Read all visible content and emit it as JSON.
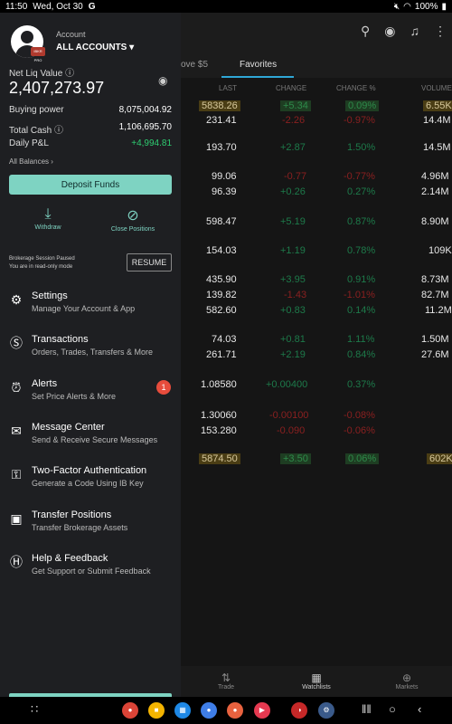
{
  "status_bar": {
    "time": "11:50",
    "date": "Wed, Oct 30",
    "g_logo": "G",
    "battery": "100%"
  },
  "background": {
    "tabs": [
      "ove $5",
      "Favorites"
    ],
    "columns": [
      "LAST",
      "CHANGE",
      "CHANGE %",
      "VOLUME"
    ],
    "rows": [
      {
        "last": "5838.26",
        "change": "+5.34",
        "change_pct": "0.09%",
        "volume": "6.55K",
        "dir": "hl"
      },
      {
        "last": "231.41",
        "change": "-2.26",
        "change_pct": "-0.97%",
        "volume": "14.4M",
        "dir": "neg"
      },
      {
        "last": "193.70",
        "change": "+2.87",
        "change_pct": "1.50%",
        "volume": "14.5M",
        "dir": "pos"
      },
      {
        "last": "99.06",
        "change": "-0.77",
        "change_pct": "-0.77%",
        "volume": "4.96M",
        "dir": "neg"
      },
      {
        "last": "96.39",
        "change": "+0.26",
        "change_pct": "0.27%",
        "volume": "2.14M",
        "dir": "pos"
      },
      {
        "last": "598.47",
        "change": "+5.19",
        "change_pct": "0.87%",
        "volume": "8.90M",
        "dir": "pos"
      },
      {
        "last": "154.03",
        "change": "+1.19",
        "change_pct": "0.78%",
        "volume": "109K",
        "dir": "pos"
      },
      {
        "last": "435.90",
        "change": "+3.95",
        "change_pct": "0.91%",
        "volume": "8.73M",
        "dir": "pos"
      },
      {
        "last": "139.82",
        "change": "-1.43",
        "change_pct": "-1.01%",
        "volume": "82.7M",
        "dir": "neg"
      },
      {
        "last": "582.60",
        "change": "+0.83",
        "change_pct": "0.14%",
        "volume": "11.2M",
        "dir": "pos"
      },
      {
        "last": "74.03",
        "change": "+0.81",
        "change_pct": "1.11%",
        "volume": "1.50M",
        "dir": "pos"
      },
      {
        "last": "261.71",
        "change": "+2.19",
        "change_pct": "0.84%",
        "volume": "27.6M",
        "dir": "pos"
      },
      {
        "last": "1.08580",
        "change": "+0.00400",
        "change_pct": "0.37%",
        "volume": "",
        "dir": "pos"
      },
      {
        "last": "1.30060",
        "change": "-0.00100",
        "change_pct": "-0.08%",
        "volume": "",
        "dir": "neg"
      },
      {
        "last": "153.280",
        "change": "-0.090",
        "change_pct": "-0.06%",
        "volume": "",
        "dir": "neg"
      },
      {
        "last": "5874.50",
        "change": "+3.50",
        "change_pct": "0.06%",
        "volume": "602K",
        "dir": "hlg"
      }
    ],
    "bottom_nav": [
      "Trade",
      "Watchlists",
      "Markets"
    ]
  },
  "drawer": {
    "account_label": "Account",
    "account_value": "ALL ACCOUNTS ▾",
    "avatar_badge": "IBKR PRO",
    "net_liq_label": "Net Liq Value ⓘ",
    "net_liq_value": "2,407,273.97",
    "buying_power_label": "Buying power",
    "buying_power_value": "8,075,004.92",
    "total_cash_label": "Total Cash ⓘ",
    "total_cash_value": "1,106,695.70",
    "daily_pl_label": "Daily P&L",
    "daily_pl_value": "+4,994.81",
    "all_balances": "All Balances ›",
    "deposit_label": "Deposit Funds",
    "withdraw_label": "Withdraw",
    "close_positions_label": "Close Positions",
    "session_line1": "Brokerage Session Paused",
    "session_line2": "You are in read-only mode",
    "resume_label": "RESUME",
    "menu": [
      {
        "title": "Settings",
        "sub": "Manage Your Account & App",
        "icon": "gear-icon"
      },
      {
        "title": "Transactions",
        "sub": "Orders, Trades, Transfers & More",
        "icon": "dollar-icon"
      },
      {
        "title": "Alerts",
        "sub": "Set Price Alerts & More",
        "icon": "alarm-icon",
        "badge": "1"
      },
      {
        "title": "Message Center",
        "sub": "Send & Receive Secure Messages",
        "icon": "message-icon"
      },
      {
        "title": "Two-Factor Authentication",
        "sub": "Generate a Code Using IB Key",
        "icon": "key-icon"
      },
      {
        "title": "Transfer Positions",
        "sub": "Transfer Brokerage Assets",
        "icon": "transfer-icon"
      },
      {
        "title": "Help & Feedback",
        "sub": "Get Support or Submit Feedback",
        "icon": "help-icon"
      }
    ]
  },
  "colors": {
    "accent": "#7ed3c2",
    "positive": "#2ecc71",
    "negative": "#e74c3c"
  }
}
